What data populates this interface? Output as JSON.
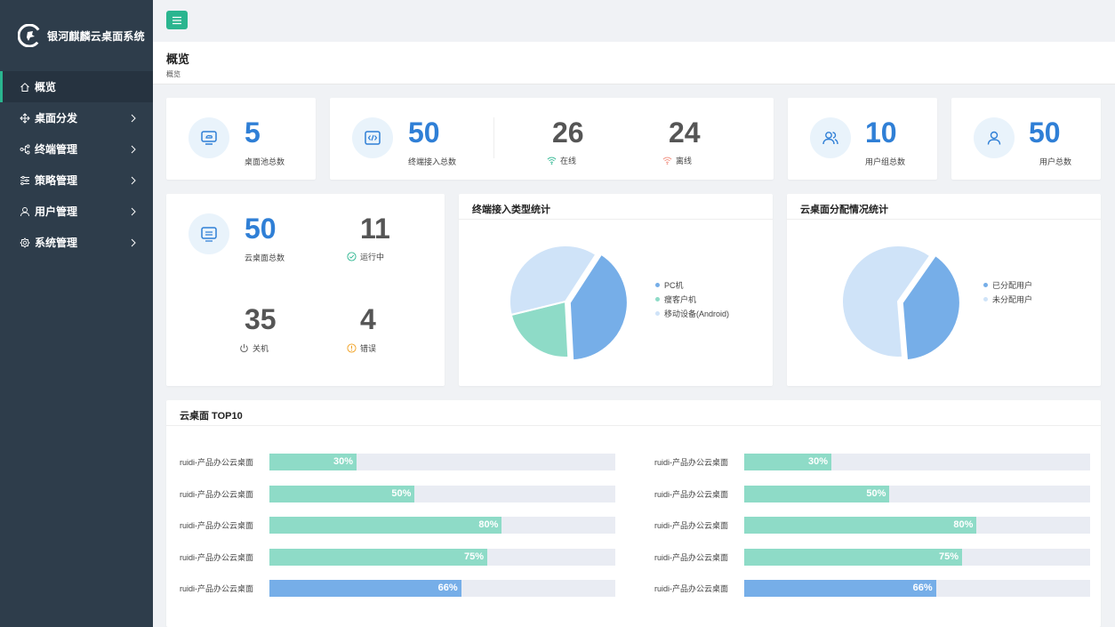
{
  "app": {
    "title": "银河麒麟云桌面系统"
  },
  "sidebar": {
    "items": [
      {
        "label": "概览",
        "icon": "home-icon",
        "active": true,
        "has_arrow": false
      },
      {
        "label": "桌面分发",
        "icon": "distribute-icon",
        "has_arrow": true
      },
      {
        "label": "终端管理",
        "icon": "terminal-icon",
        "has_arrow": true
      },
      {
        "label": "策略管理",
        "icon": "policy-icon",
        "has_arrow": true
      },
      {
        "label": "用户管理",
        "icon": "user-icon",
        "has_arrow": true
      },
      {
        "label": "系统管理",
        "icon": "gear-icon",
        "has_arrow": true
      }
    ]
  },
  "page": {
    "title": "概览",
    "breadcrumb": "概览"
  },
  "stats": {
    "pool": {
      "value": "5",
      "label": "桌面池总数"
    },
    "terminals": {
      "value": "50",
      "label": "终端接入总数",
      "online_value": "26",
      "online_label": "在线",
      "offline_value": "24",
      "offline_label": "离线"
    },
    "groups": {
      "value": "10",
      "label": "用户组总数"
    },
    "users": {
      "value": "50",
      "label": "用户总数"
    },
    "desktops": {
      "value": "50",
      "label": "云桌面总数",
      "running_value": "11",
      "running_label": "运行中",
      "off_value": "35",
      "off_label": "关机",
      "error_value": "4",
      "error_label": "错误"
    }
  },
  "colors": {
    "accent": "#2ab58f",
    "blue": "#2f7fd6",
    "sidebar": "#2e3d4b",
    "pie_blue": "#76aee8",
    "pie_green": "#8edbc7",
    "pie_light": "#cfe3f8"
  },
  "charts": {
    "terminal_type": {
      "title": "终端接入类型统计"
    },
    "allocation": {
      "title": "云桌面分配情况统计"
    },
    "top10": {
      "title": "云桌面 TOP10"
    }
  },
  "chart_data": [
    {
      "type": "pie",
      "labels": [
        "PC机",
        "瘦客户机",
        "移动设备(Android)"
      ],
      "values": [
        40,
        22,
        38
      ],
      "colors": [
        "#76aee8",
        "#8edbc7",
        "#cfe3f8"
      ]
    },
    {
      "type": "pie",
      "labels": [
        "已分配用户",
        "未分配用户"
      ],
      "values": [
        39,
        61
      ],
      "colors": [
        "#76aee8",
        "#cfe3f8"
      ]
    },
    {
      "type": "bar",
      "orientation": "horizontal",
      "columns": [
        [
          {
            "label": "ruidi-产品办公云桌面",
            "value": 30,
            "text": "30%",
            "color": "green"
          },
          {
            "label": "ruidi-产品办公云桌面",
            "value": 50,
            "text": "50%",
            "color": "green"
          },
          {
            "label": "ruidi-产品办公云桌面",
            "value": 80,
            "text": "80%",
            "color": "green"
          },
          {
            "label": "ruidi-产品办公云桌面",
            "value": 75,
            "text": "75%",
            "color": "green"
          },
          {
            "label": "ruidi-产品办公云桌面",
            "value": 66,
            "text": "66%",
            "color": "blue"
          }
        ],
        [
          {
            "label": "ruidi-产品办公云桌面",
            "value": 30,
            "text": "30%",
            "color": "green"
          },
          {
            "label": "ruidi-产品办公云桌面",
            "value": 50,
            "text": "50%",
            "color": "green"
          },
          {
            "label": "ruidi-产品办公云桌面",
            "value": 80,
            "text": "80%",
            "color": "green"
          },
          {
            "label": "ruidi-产品办公云桌面",
            "value": 75,
            "text": "75%",
            "color": "green"
          },
          {
            "label": "ruidi-产品办公云桌面",
            "value": 66,
            "text": "66%",
            "color": "blue"
          }
        ]
      ]
    }
  ]
}
